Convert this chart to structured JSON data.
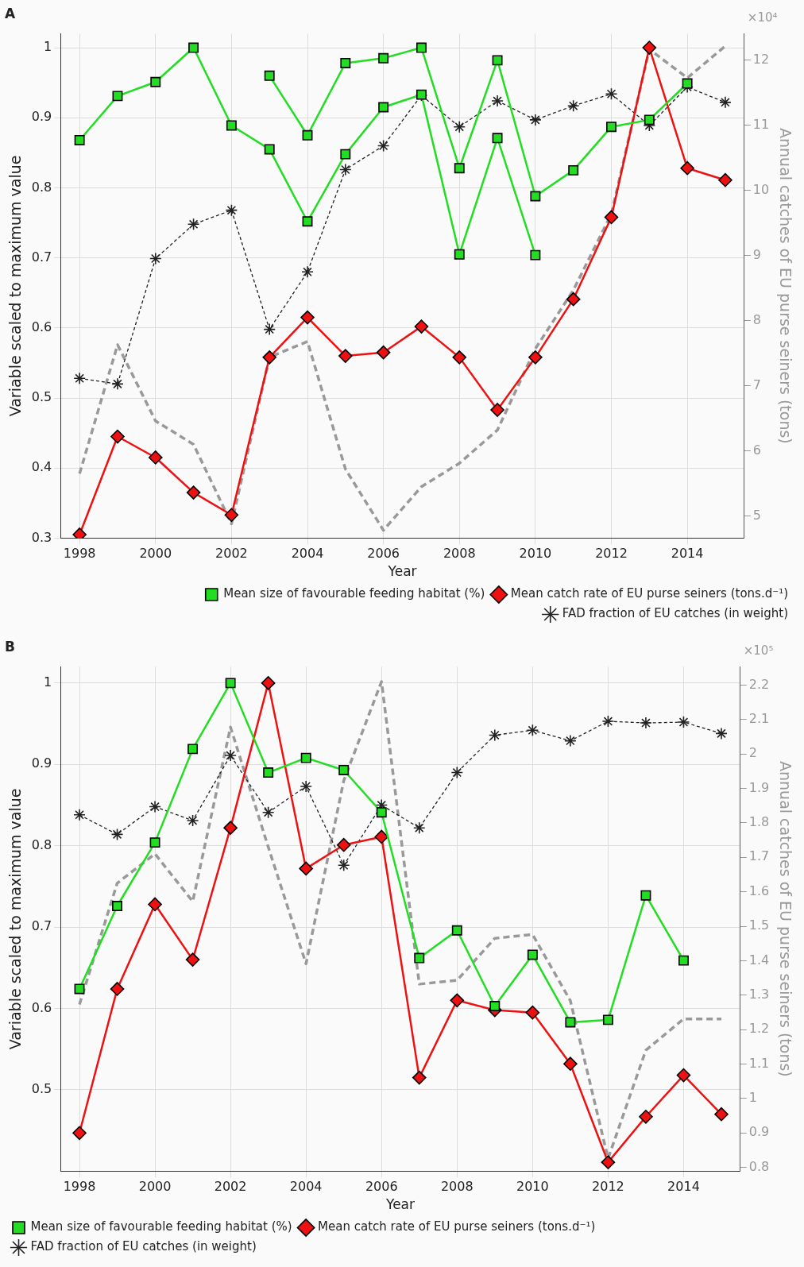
{
  "chart_data": [
    {
      "type": "line",
      "title": "A",
      "xlabel": "Year",
      "ylabel": "Variable scaled to maximum value",
      "y2label": "Annual catches of EU purse seiners (tons)",
      "x": [
        1998,
        1999,
        2000,
        2001,
        2002,
        2003,
        2004,
        2005,
        2006,
        2007,
        2008,
        2009,
        2010,
        2011,
        2012,
        2013,
        2014,
        2015
      ],
      "xlim": [
        1997.5,
        2015.5
      ],
      "xticks": [
        1998,
        2000,
        2002,
        2004,
        2006,
        2008,
        2010,
        2012,
        2014
      ],
      "ylim": [
        0.3,
        1.02
      ],
      "yticks": [
        0.3,
        0.4,
        0.5,
        0.6,
        0.7,
        0.8,
        0.9,
        1
      ],
      "y2lim": [
        4.66,
        12.41
      ],
      "y2ticks": [
        5,
        6,
        7,
        8,
        9,
        10,
        11,
        12
      ],
      "annotations": [
        "×10⁴"
      ],
      "grid": true,
      "legend": "bottom right",
      "series": [
        {
          "name": "Mean size of favourable feeding habitat (%)",
          "color": "#22dd22",
          "marker": "square",
          "line_style": "solid",
          "values": [
            0.868,
            0.931,
            0.951,
            1.0,
            0.889,
            0.855,
            0.752,
            0.848,
            0.915,
            0.933,
            0.705,
            0.871,
            0.704,
            null,
            null,
            null,
            null,
            null
          ]
        },
        {
          "color": "#22dd22",
          "marker": "square",
          "line_style": "solid",
          "values": [
            null,
            null,
            null,
            null,
            null,
            0.96,
            0.875,
            0.978,
            0.985,
            1.0,
            0.828,
            0.982,
            0.788,
            0.825,
            0.887,
            0.897,
            0.949,
            null
          ]
        },
        {
          "name": "Mean catch rate of EU purse seiners (tons.d⁻¹)",
          "color": "#ee1111",
          "marker": "diamond",
          "line_style": "solid",
          "values": [
            0.305,
            0.445,
            0.415,
            0.365,
            0.333,
            0.558,
            0.615,
            0.56,
            0.565,
            0.602,
            0.558,
            0.483,
            0.558,
            0.641,
            0.758,
            1.0,
            0.828,
            0.811
          ]
        },
        {
          "name": "FAD fraction of EU catches (in weight)",
          "color": "#222222",
          "marker": "cross",
          "line_style": "dashed",
          "values": [
            0.528,
            0.52,
            0.699,
            0.748,
            0.768,
            0.598,
            0.68,
            0.826,
            0.86,
            0.932,
            0.887,
            0.924,
            0.897,
            0.917,
            0.934,
            0.889,
            0.944,
            0.922
          ]
        },
        {
          "color": "#999999",
          "marker": "none",
          "line_style": "dashed",
          "axis": "y2",
          "values": [
            5.65,
            7.63,
            6.46,
            6.1,
            4.88,
            7.44,
            7.68,
            5.72,
            4.78,
            5.45,
            5.81,
            6.32,
            7.57,
            8.47,
            9.64,
            12.17,
            11.73,
            12.22
          ]
        }
      ]
    },
    {
      "type": "line",
      "title": "B",
      "xlabel": "Year",
      "ylabel": "Variable scaled to maximum value",
      "y2label": "Annual catches of EU purse seiners (tons)",
      "x": [
        1998,
        1999,
        2000,
        2001,
        2002,
        2003,
        2004,
        2005,
        2006,
        2007,
        2008,
        2009,
        2010,
        2011,
        2012,
        2013,
        2014,
        2015
      ],
      "xlim": [
        1997.5,
        2015.5
      ],
      "xticks": [
        1998,
        2000,
        2002,
        2004,
        2006,
        2008,
        2010,
        2012,
        2014
      ],
      "ylim": [
        0.4,
        1.02
      ],
      "yticks": [
        0.5,
        0.6,
        0.7,
        0.8,
        0.9,
        1
      ],
      "y2lim": [
        0.789,
        2.253
      ],
      "y2ticks": [
        0.8,
        0.9,
        1,
        1.1,
        1.2,
        1.3,
        1.4,
        1.5,
        1.6,
        1.7,
        1.8,
        1.9,
        2,
        2.1,
        2.2
      ],
      "annotations": [
        "×10⁵"
      ],
      "grid": true,
      "legend": "bottom left",
      "series": [
        {
          "name": "Mean size of favourable feeding habitat (%)",
          "color": "#22dd22",
          "marker": "square",
          "line_style": "solid",
          "values": [
            0.624,
            0.726,
            0.804,
            0.919,
            1.0,
            0.89,
            0.908,
            0.893,
            0.841,
            0.662,
            0.696,
            0.603,
            0.666,
            0.583,
            0.586,
            0.739,
            0.659,
            null
          ]
        },
        {
          "name": "Mean catch rate of EU purse seiners (tons.d⁻¹)",
          "color": "#ee1111",
          "marker": "diamond",
          "line_style": "solid",
          "values": [
            0.447,
            0.624,
            0.728,
            0.66,
            0.822,
            1.0,
            0.772,
            0.801,
            0.811,
            0.515,
            0.61,
            0.598,
            0.595,
            0.532,
            0.411,
            0.467,
            0.518,
            0.47
          ]
        },
        {
          "name": "FAD fraction of EU catches (in weight)",
          "color": "#222222",
          "marker": "cross",
          "line_style": "dashed",
          "values": [
            0.838,
            0.814,
            0.848,
            0.831,
            0.911,
            0.841,
            0.873,
            0.776,
            0.85,
            0.822,
            0.89,
            0.936,
            0.942,
            0.929,
            0.953,
            0.951,
            0.952,
            0.938
          ]
        },
        {
          "color": "#999999",
          "marker": "none",
          "line_style": "dashed",
          "axis": "y2",
          "values": [
            1.273,
            1.625,
            1.71,
            1.572,
            2.078,
            1.73,
            1.391,
            1.923,
            2.21,
            1.332,
            1.343,
            1.465,
            1.476,
            1.284,
            0.826,
            1.14,
            1.231,
            1.231
          ]
        }
      ]
    }
  ]
}
